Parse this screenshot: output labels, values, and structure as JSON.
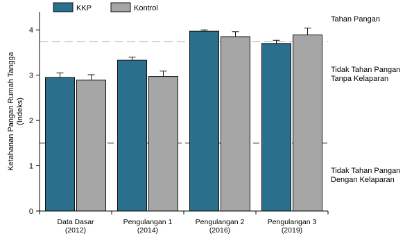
{
  "chart_data": {
    "type": "bar",
    "categories": [
      [
        "Data Dasar",
        "(2012)"
      ],
      [
        "Pengulangan 1",
        "(2014)"
      ],
      [
        "Pengulangan 2",
        "(2016)"
      ],
      [
        "Pengulangan 3",
        "(2019)"
      ]
    ],
    "series": [
      {
        "name": "KKP",
        "color": "#2a6f8b",
        "values": [
          2.95,
          3.33,
          3.97,
          3.7
        ],
        "errors": [
          0.1,
          0.07,
          0.03,
          0.07
        ]
      },
      {
        "name": "Kontrol",
        "color": "#a6a6a6",
        "values": [
          2.89,
          2.97,
          3.85,
          3.89
        ],
        "errors": [
          0.12,
          0.12,
          0.11,
          0.15
        ]
      }
    ],
    "ylabel": [
      "Ketahanan Pangan Rumah Tangga",
      "(Indeks)"
    ],
    "ylim": [
      0,
      4.4
    ],
    "yticks": [
      0,
      1,
      2,
      3,
      4
    ],
    "thresholds": [
      {
        "value": 3.74,
        "color": "#aaaaaa"
      },
      {
        "value": 1.5,
        "color": "#333333"
      }
    ],
    "zone_labels": [
      [
        "Tahan Pangan"
      ],
      [
        "Tidak Tahan Pangan",
        "Tanpa Kelaparan"
      ],
      [
        "Tidak Tahan Pangan",
        "Dengan Kelaparan"
      ]
    ],
    "legend_position": "top-left",
    "grid": false
  }
}
